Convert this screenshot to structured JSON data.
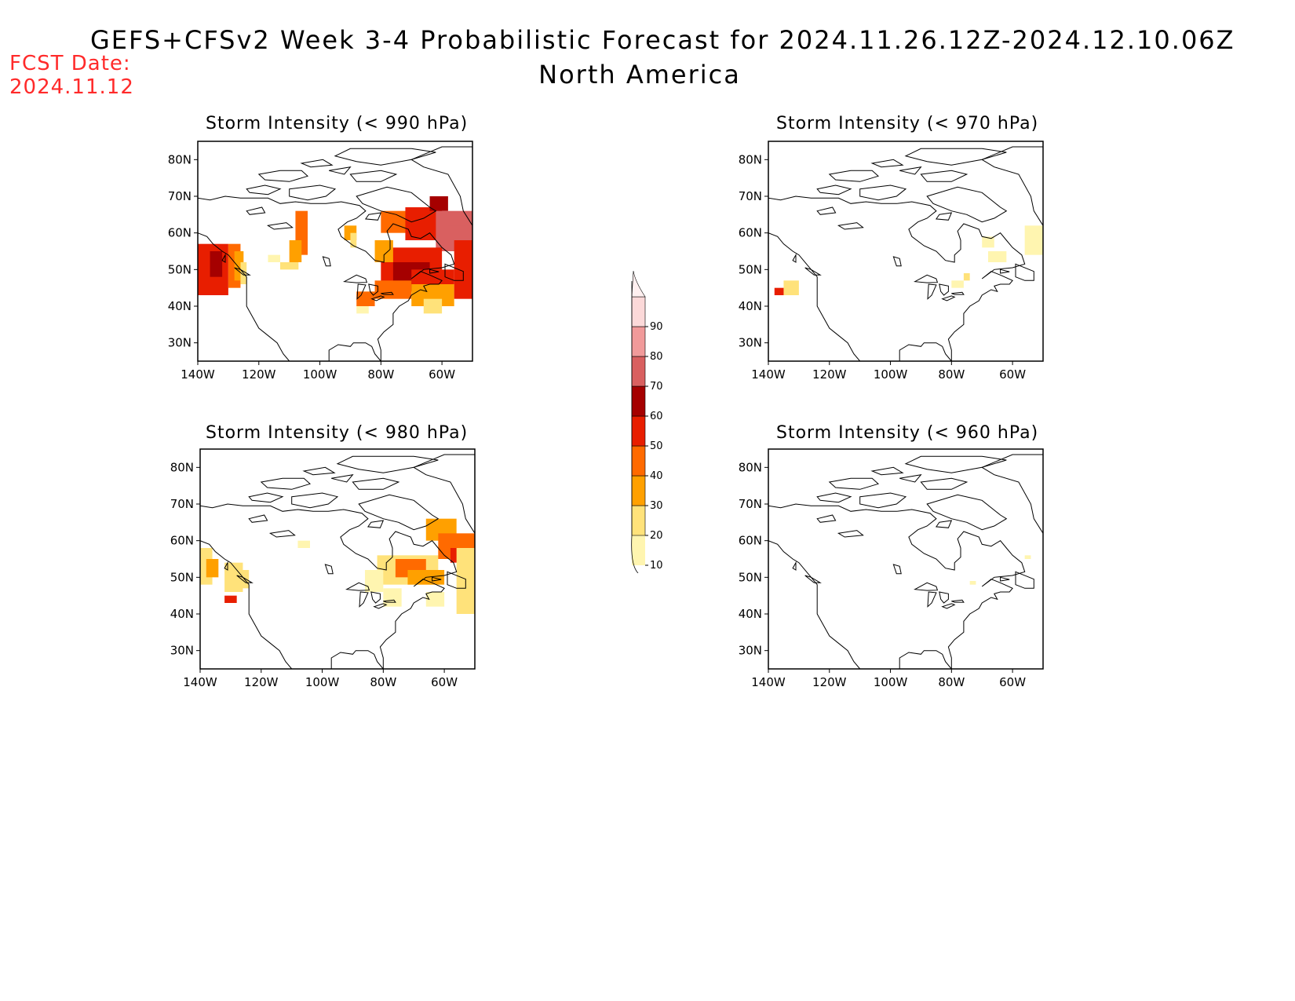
{
  "title": "GEFS+CFSv2 Week 3-4 Probabilistic Forecast for 2024.11.26.12Z-2024.12.10.06Z",
  "subtitle": "North America",
  "fcst_label": "FCST Date:",
  "fcst_date": "2024.11.12",
  "panels": [
    {
      "title": "Storm Intensity (< 990 hPa)"
    },
    {
      "title": "Storm Intensity (< 970 hPa)"
    },
    {
      "title": "Storm Intensity (< 980 hPa)"
    },
    {
      "title": "Storm Intensity (< 960 hPa)"
    }
  ],
  "lat_ticks": [
    "80N",
    "70N",
    "60N",
    "50N",
    "40N",
    "30N"
  ],
  "lon_ticks": [
    "140W",
    "120W",
    "100W",
    "80W",
    "60W"
  ],
  "colorbar": {
    "levels": [
      "10",
      "20",
      "30",
      "40",
      "50",
      "60",
      "70",
      "80",
      "90"
    ],
    "colors": [
      "#fff5b0",
      "#ffe27a",
      "#ffa000",
      "#ff6a00",
      "#e81e00",
      "#a50000",
      "#d96060",
      "#f19a9a",
      "#fcd9d9",
      "#fff0f0"
    ]
  }
}
